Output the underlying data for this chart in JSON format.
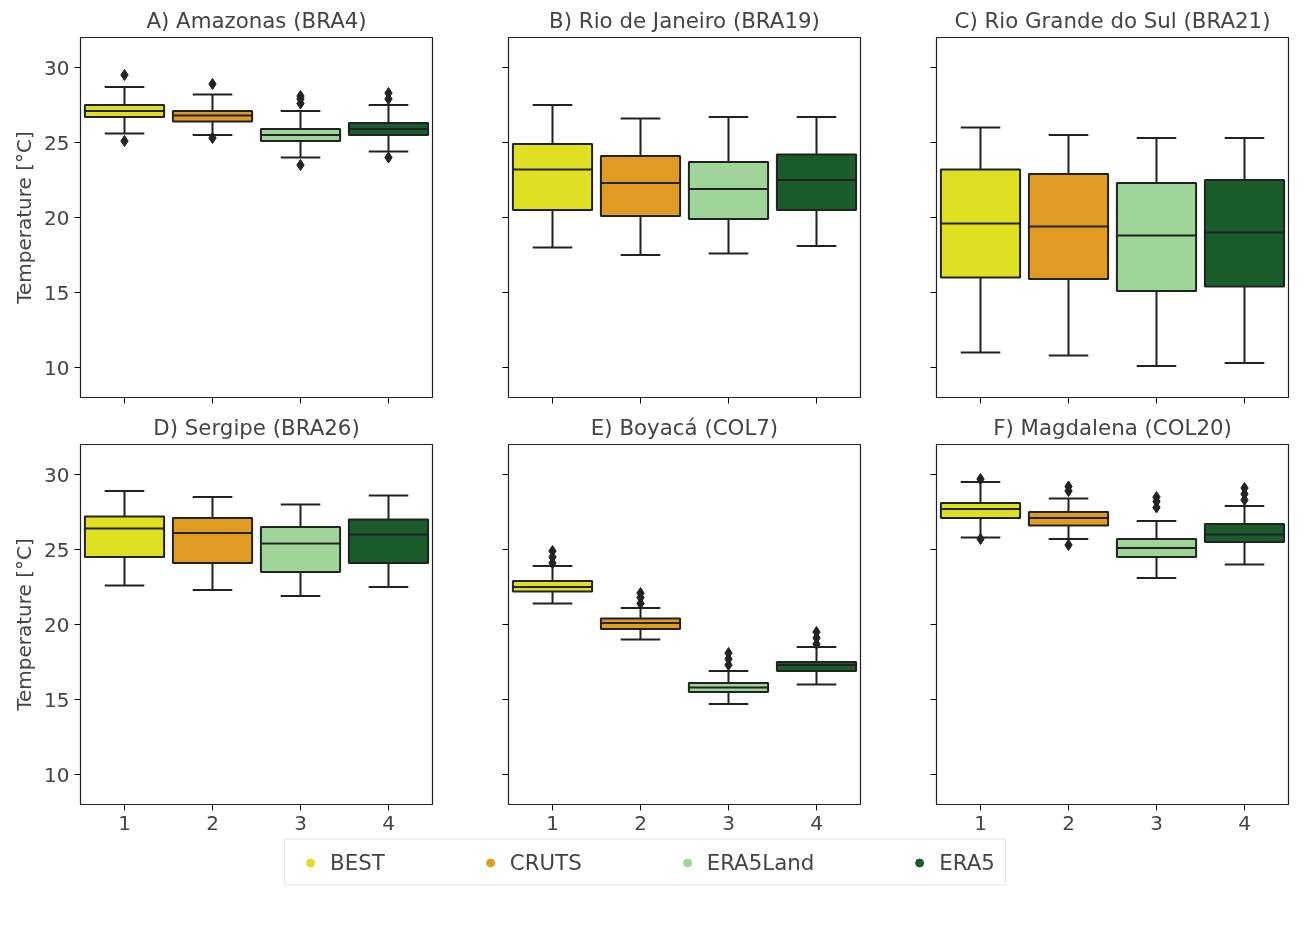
{
  "chart_data": [
    {
      "type": "box",
      "title": "A) Amazonas (BRA4)",
      "ylabel": "Temperature [°C]",
      "categories": [
        "1",
        "2",
        "3",
        "4"
      ],
      "ylim": [
        8,
        32
      ],
      "yticks": [
        10,
        15,
        20,
        25,
        30
      ],
      "tick_labels": "y",
      "legend": "bottom",
      "grid": false,
      "series": [
        {
          "name": "BEST",
          "color": "#dfe022",
          "boxes": [
            {
              "low": 25.6,
              "q1": 26.7,
              "median": 27.1,
              "q3": 27.5,
              "high": 28.7,
              "outliers": [
                29.5,
                25.1
              ]
            },
            null,
            null,
            null
          ]
        },
        {
          "name": "CRUTS",
          "color": "#e09c22",
          "boxes": [
            null,
            {
              "low": 25.5,
              "q1": 26.4,
              "median": 26.8,
              "q3": 27.1,
              "high": 28.2,
              "outliers": [
                28.9,
                25.3
              ]
            },
            null,
            null
          ]
        },
        {
          "name": "ERA5Land",
          "color": "#a0d59a",
          "boxes": [
            null,
            null,
            {
              "low": 24.0,
              "q1": 25.1,
              "median": 25.5,
              "q3": 25.9,
              "high": 27.1,
              "outliers": [
                28.1,
                27.9,
                27.6,
                23.5
              ]
            },
            null
          ]
        },
        {
          "name": "ERA5",
          "color": "#1a5c2c",
          "boxes": [
            null,
            null,
            null,
            {
              "low": 24.4,
              "q1": 25.5,
              "median": 25.9,
              "q3": 26.3,
              "high": 27.5,
              "outliers": [
                28.3,
                27.9,
                24.0
              ]
            }
          ]
        }
      ]
    },
    {
      "type": "box",
      "title": "B) Rio de Janeiro (BRA19)",
      "categories": [
        "1",
        "2",
        "3",
        "4"
      ],
      "ylim": [
        8,
        32
      ],
      "yticks": [
        10,
        15,
        20,
        25,
        30
      ],
      "tick_labels": false,
      "grid": false,
      "series": [
        {
          "color": "#dfe022",
          "boxes": [
            {
              "low": 18.0,
              "q1": 20.5,
              "median": 23.2,
              "q3": 24.9,
              "high": 27.5
            },
            null,
            null,
            null
          ]
        },
        {
          "color": "#e09c22",
          "boxes": [
            null,
            {
              "low": 17.5,
              "q1": 20.1,
              "median": 22.3,
              "q3": 24.1,
              "high": 26.6
            },
            null,
            null
          ]
        },
        {
          "color": "#a0d59a",
          "boxes": [
            null,
            null,
            {
              "low": 17.6,
              "q1": 19.9,
              "median": 21.9,
              "q3": 23.7,
              "high": 26.7
            },
            null
          ]
        },
        {
          "color": "#1a5c2c",
          "boxes": [
            null,
            null,
            null,
            {
              "low": 18.1,
              "q1": 20.5,
              "median": 22.5,
              "q3": 24.2,
              "high": 26.7
            }
          ]
        }
      ]
    },
    {
      "type": "box",
      "title": "C) Rio Grande do Sul (BRA21)",
      "categories": [
        "1",
        "2",
        "3",
        "4"
      ],
      "ylim": [
        8,
        32
      ],
      "yticks": [
        10,
        15,
        20,
        25,
        30
      ],
      "tick_labels": false,
      "grid": false,
      "series": [
        {
          "color": "#dfe022",
          "boxes": [
            {
              "low": 11.0,
              "q1": 16.0,
              "median": 19.6,
              "q3": 23.2,
              "high": 26.0
            },
            null,
            null,
            null
          ]
        },
        {
          "color": "#e09c22",
          "boxes": [
            null,
            {
              "low": 10.8,
              "q1": 15.9,
              "median": 19.4,
              "q3": 22.9,
              "high": 25.5
            },
            null,
            null
          ]
        },
        {
          "color": "#a0d59a",
          "boxes": [
            null,
            null,
            {
              "low": 10.1,
              "q1": 15.1,
              "median": 18.8,
              "q3": 22.3,
              "high": 25.3
            },
            null
          ]
        },
        {
          "color": "#1a5c2c",
          "boxes": [
            null,
            null,
            null,
            {
              "low": 10.3,
              "q1": 15.4,
              "median": 19.0,
              "q3": 22.5,
              "high": 25.3
            }
          ]
        }
      ]
    },
    {
      "type": "box",
      "title": "D) Sergipe (BRA26)",
      "ylabel": "Temperature [°C]",
      "categories": [
        "1",
        "2",
        "3",
        "4"
      ],
      "ylim": [
        8,
        32
      ],
      "yticks": [
        10,
        15,
        20,
        25,
        30
      ],
      "grid": false,
      "series": [
        {
          "color": "#dfe022",
          "boxes": [
            {
              "low": 22.6,
              "q1": 24.5,
              "median": 26.4,
              "q3": 27.2,
              "high": 28.9
            },
            null,
            null,
            null
          ]
        },
        {
          "color": "#e09c22",
          "boxes": [
            null,
            {
              "low": 22.3,
              "q1": 24.1,
              "median": 26.1,
              "q3": 27.1,
              "high": 28.5
            },
            null,
            null
          ]
        },
        {
          "color": "#a0d59a",
          "boxes": [
            null,
            null,
            {
              "low": 21.9,
              "q1": 23.5,
              "median": 25.4,
              "q3": 26.5,
              "high": 28.0
            },
            null
          ]
        },
        {
          "color": "#1a5c2c",
          "boxes": [
            null,
            null,
            null,
            {
              "low": 22.5,
              "q1": 24.1,
              "median": 26.0,
              "q3": 27.0,
              "high": 28.6
            }
          ]
        }
      ]
    },
    {
      "type": "box",
      "title": "E) Boyacá (COL7)",
      "categories": [
        "1",
        "2",
        "3",
        "4"
      ],
      "ylim": [
        8,
        32
      ],
      "yticks": [
        10,
        15,
        20,
        25,
        30
      ],
      "tick_labels": "x",
      "grid": false,
      "series": [
        {
          "color": "#dfe022",
          "boxes": [
            {
              "low": 21.4,
              "q1": 22.2,
              "median": 22.5,
              "q3": 22.9,
              "high": 23.9,
              "outliers": [
                24.9,
                24.5,
                24.1
              ]
            },
            null,
            null,
            null
          ]
        },
        {
          "color": "#e09c22",
          "boxes": [
            null,
            {
              "low": 19.0,
              "q1": 19.7,
              "median": 20.1,
              "q3": 20.4,
              "high": 21.1,
              "outliers": [
                22.1,
                21.8,
                21.4
              ]
            },
            null,
            null
          ]
        },
        {
          "color": "#a0d59a",
          "boxes": [
            null,
            null,
            {
              "low": 14.7,
              "q1": 15.5,
              "median": 15.8,
              "q3": 16.1,
              "high": 16.9,
              "outliers": [
                18.1,
                17.7,
                17.3
              ]
            },
            null
          ]
        },
        {
          "color": "#1a5c2c",
          "boxes": [
            null,
            null,
            null,
            {
              "low": 16.0,
              "q1": 16.9,
              "median": 17.3,
              "q3": 17.5,
              "high": 18.5,
              "outliers": [
                19.5,
                19.1,
                18.7
              ]
            }
          ]
        }
      ]
    },
    {
      "type": "box",
      "title": "F) Magdalena (COL20)",
      "categories": [
        "1",
        "2",
        "3",
        "4"
      ],
      "ylim": [
        8,
        32
      ],
      "yticks": [
        10,
        15,
        20,
        25,
        30
      ],
      "tick_labels": "x",
      "grid": false,
      "series": [
        {
          "color": "#dfe022",
          "boxes": [
            {
              "low": 25.8,
              "q1": 27.1,
              "median": 27.7,
              "q3": 28.1,
              "high": 29.5,
              "outliers": [
                29.7,
                25.7
              ]
            },
            null,
            null,
            null
          ]
        },
        {
          "color": "#e09c22",
          "boxes": [
            null,
            {
              "low": 25.7,
              "q1": 26.6,
              "median": 27.1,
              "q3": 27.5,
              "high": 28.4,
              "outliers": [
                29.2,
                28.9,
                25.3
              ]
            },
            null,
            null
          ]
        },
        {
          "color": "#a0d59a",
          "boxes": [
            null,
            null,
            {
              "low": 23.1,
              "q1": 24.5,
              "median": 25.1,
              "q3": 25.7,
              "high": 26.9,
              "outliers": [
                28.5,
                28.2,
                27.8
              ]
            },
            null
          ]
        },
        {
          "color": "#1a5c2c",
          "boxes": [
            null,
            null,
            null,
            {
              "low": 24.0,
              "q1": 25.5,
              "median": 26.0,
              "q3": 26.7,
              "high": 27.9,
              "outliers": [
                29.1,
                28.7,
                28.3
              ]
            }
          ]
        }
      ]
    }
  ]
}
